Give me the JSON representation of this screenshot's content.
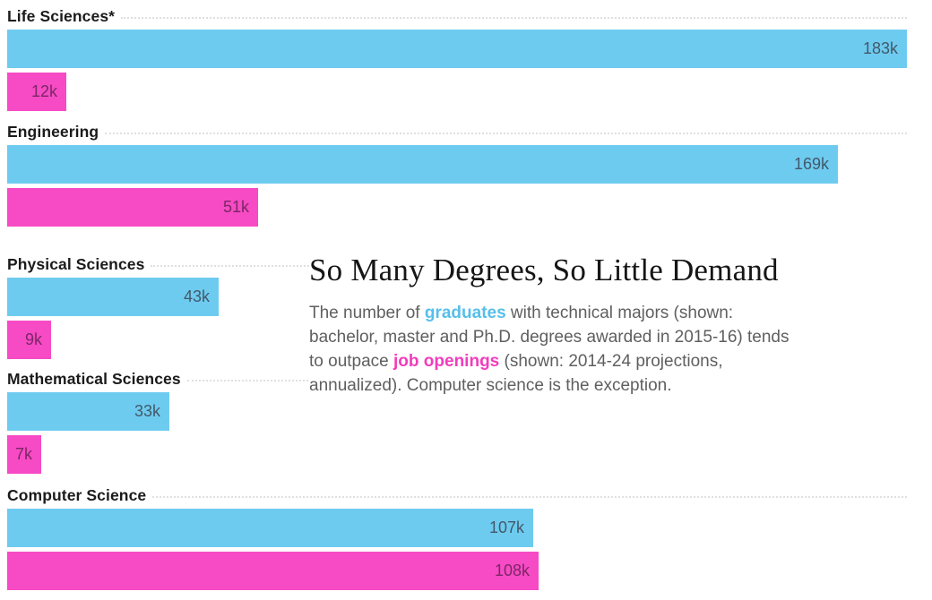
{
  "chart_data": {
    "type": "bar",
    "orientation": "horizontal",
    "title": "So Many Degrees, So Little Demand",
    "categories": [
      "Life Sciences*",
      "Engineering",
      "Physical Sciences",
      "Mathematical Sciences",
      "Computer Science"
    ],
    "series": [
      {
        "name": "graduates",
        "color": "#6ecbf0",
        "label_color": "#42596a",
        "values": [
          183,
          169,
          43,
          33,
          107
        ],
        "value_labels": [
          "183k",
          "169k",
          "43k",
          "33k",
          "107k"
        ]
      },
      {
        "name": "job openings",
        "color": "#f74ac5",
        "label_color": "#7c2765",
        "values": [
          12,
          51,
          9,
          7,
          108
        ],
        "value_labels": [
          "12k",
          "51k",
          "9k",
          "7k",
          "108k"
        ]
      }
    ],
    "max_value": 183,
    "unit": "thousands",
    "value_suffix": "k",
    "grid": "off",
    "legend": "inline-in-description",
    "xlim": [
      0,
      183
    ]
  },
  "text_block": {
    "title": "So Many Degrees, So Little Demand",
    "description_lines": [
      {
        "parts": [
          {
            "text": "The number of "
          },
          {
            "text": "graduates",
            "style": "blue"
          },
          {
            "text": " with technical majors (shown:"
          }
        ]
      },
      {
        "parts": [
          {
            "text": "bachelor, master and Ph.D. degrees awarded in 2015-16) tends"
          }
        ]
      },
      {
        "parts": [
          {
            "text": "to outpace "
          },
          {
            "text": "job openings",
            "style": "pink"
          },
          {
            "text": " (shown: 2014-24 projections,"
          }
        ]
      },
      {
        "parts": [
          {
            "text": "annualized). Computer science is the exception."
          }
        ]
      }
    ]
  },
  "colors": {
    "graduates_bar": "#6ecbf0",
    "job_openings_bar": "#f74ac5",
    "category_label": "#1b1b1b",
    "body_text": "#5f5f5f",
    "dotted_rule": "#e0e0e0"
  }
}
